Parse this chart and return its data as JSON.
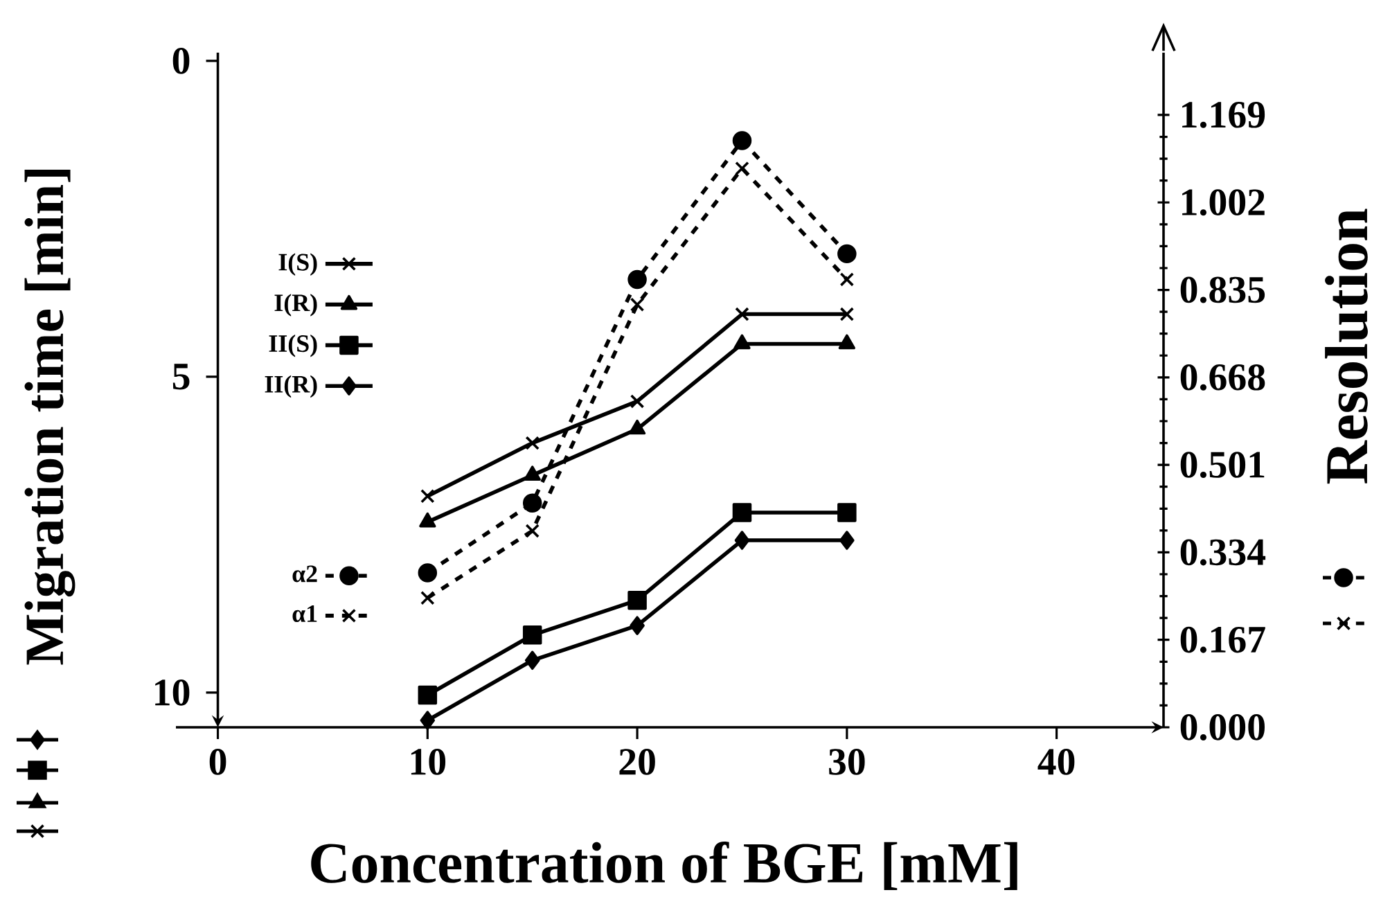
{
  "chart_data": {
    "type": "line",
    "xlabel": "Concentration of BGE  [mM]",
    "ylabel": "Migration time [min]",
    "y2label": "Resolution",
    "x": [
      10,
      15,
      20,
      25,
      30
    ],
    "xlim": [
      -2,
      45.1
    ],
    "xticks": [
      0,
      10,
      20,
      30,
      40
    ],
    "ylim": [
      10.55,
      -0.13
    ],
    "yticks": [
      0,
      5,
      10
    ],
    "y2lim": [
      0,
      1.288
    ],
    "y2ticks": [
      {
        "value": 0,
        "label": "0.000"
      },
      0.167,
      0.334,
      0.501,
      0.668,
      0.835,
      1.002,
      1.169
    ],
    "legend": "left",
    "series": [
      {
        "name": "I(S)",
        "color": "#000000",
        "marker": "cross",
        "line_style": "solid",
        "values": [
          6.89,
          6.05,
          5.39,
          4.01,
          4.01
        ]
      },
      {
        "name": "I(R)",
        "color": "#000000",
        "marker": "triangle",
        "line_style": "solid",
        "values": [
          7.3,
          6.56,
          5.83,
          4.48,
          4.48
        ]
      },
      {
        "name": "II(S)",
        "color": "#000000",
        "marker": "square",
        "line_style": "solid",
        "values": [
          10.04,
          9.09,
          8.54,
          7.15,
          7.15
        ]
      },
      {
        "name": "II(R)",
        "color": "#000000",
        "marker": "diamond",
        "line_style": "solid",
        "values": [
          10.44,
          9.49,
          8.94,
          7.59,
          7.59
        ]
      },
      {
        "name": "α2",
        "color": "#000000",
        "marker": "circle",
        "line_style": "dashed",
        "axis": "y2",
        "values": [
          0.295,
          0.428,
          0.855,
          1.12,
          0.904
        ]
      },
      {
        "name": "α1",
        "color": "#000000",
        "marker": "cross",
        "line_style": "dashed",
        "axis": "y2",
        "values": [
          0.247,
          0.375,
          0.807,
          1.067,
          0.855
        ]
      }
    ]
  }
}
